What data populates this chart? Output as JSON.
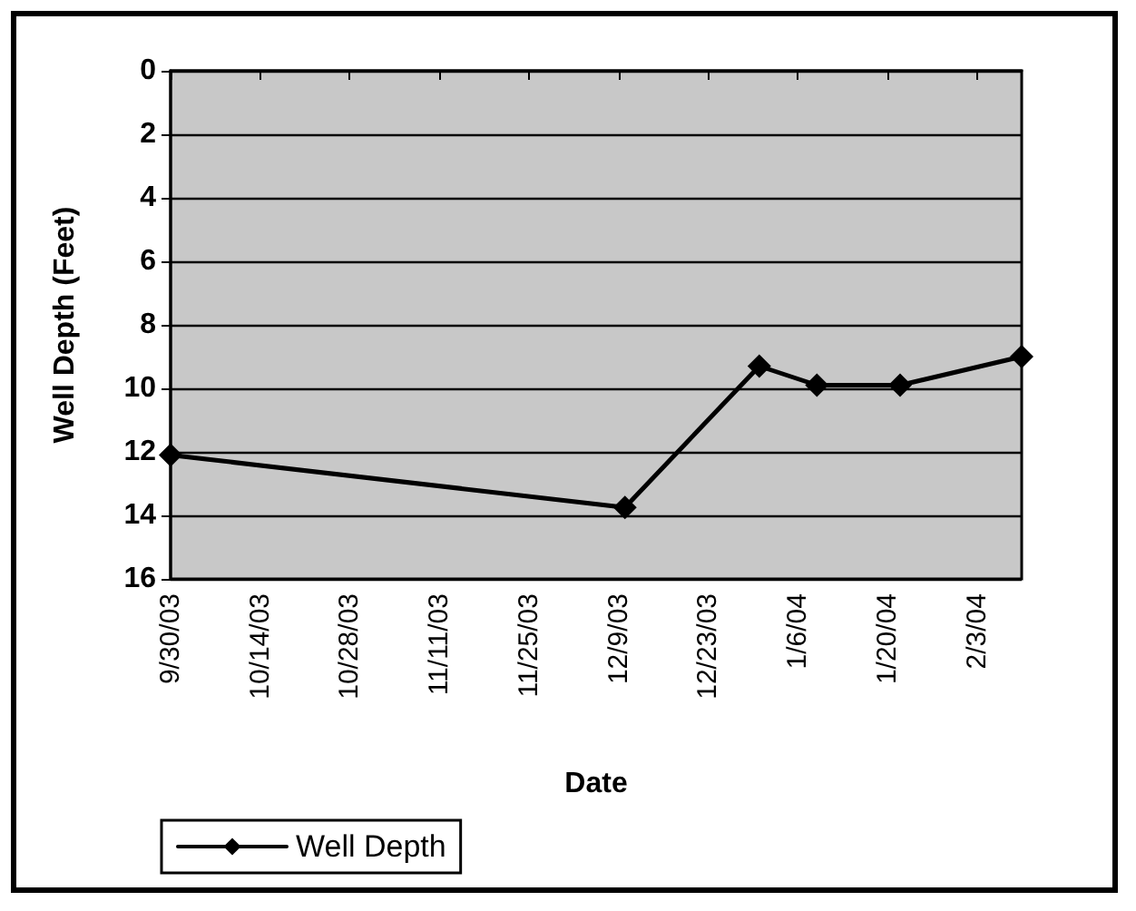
{
  "chart_data": {
    "type": "line",
    "xlabel": "Date",
    "ylabel": "Well Depth (Feet)",
    "x": [
      "2003-09-30",
      "2003-12-10",
      "2003-12-31",
      "2004-01-09",
      "2004-01-22",
      "2004-02-10"
    ],
    "series": [
      {
        "name": "Well Depth",
        "color": "#000000",
        "values": [
          12.1,
          13.75,
          9.3,
          9.9,
          9.9,
          9.0
        ]
      }
    ],
    "xlim": [
      "2003-09-30",
      "2004-02-10"
    ],
    "xticks": [
      {
        "value": "2003-09-30",
        "label": "9/30/03"
      },
      {
        "value": "2003-10-14",
        "label": "10/14/03"
      },
      {
        "value": "2003-10-28",
        "label": "10/28/03"
      },
      {
        "value": "2003-11-11",
        "label": "11/11/03"
      },
      {
        "value": "2003-11-25",
        "label": "11/25/03"
      },
      {
        "value": "2003-12-09",
        "label": "12/9/03"
      },
      {
        "value": "2003-12-23",
        "label": "12/23/03"
      },
      {
        "value": "2004-01-06",
        "label": "1/6/04"
      },
      {
        "value": "2004-01-20",
        "label": "1/20/04"
      },
      {
        "value": "2004-02-03",
        "label": "2/3/04"
      }
    ],
    "ylim": [
      16,
      0
    ],
    "yticks": [
      0,
      2,
      4,
      6,
      8,
      10,
      12,
      14,
      16
    ],
    "grid": "y",
    "legend": "bottom left",
    "marker": "diamond",
    "line_style": "solid"
  }
}
